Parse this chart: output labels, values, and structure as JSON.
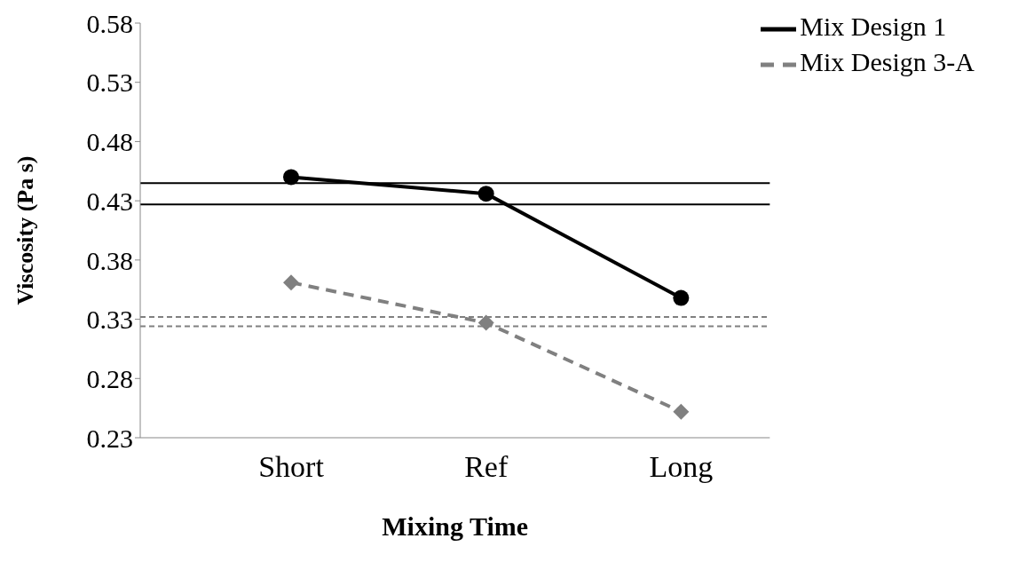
{
  "chart_data": {
    "type": "line",
    "xlabel": "Mixing Time",
    "ylabel": "Viscosity (Pa s)",
    "categories": [
      "Short",
      "Ref",
      "Long"
    ],
    "series": [
      {
        "name": "Mix Design 1",
        "color": "#000000",
        "values": [
          0.45,
          0.436,
          0.348
        ],
        "marker": "circle",
        "line_style": "solid"
      },
      {
        "name": "Mix Design 3-A",
        "color": "#808080",
        "values": [
          0.361,
          0.327,
          0.252
        ],
        "marker": "diamond",
        "line_style": "dashed"
      }
    ],
    "ylim": [
      0.23,
      0.58
    ],
    "yticks": [
      0.23,
      0.28,
      0.33,
      0.38,
      0.43,
      0.48,
      0.53,
      0.58
    ],
    "grid": false,
    "legend": "top right",
    "ref_lines": [
      {
        "axis": "y",
        "value": 0.445,
        "color": "#000000",
        "line_style": "solid"
      },
      {
        "axis": "y",
        "value": 0.427,
        "color": "#000000",
        "line_style": "solid"
      },
      {
        "axis": "y",
        "value": 0.332,
        "color": "#808080",
        "line_style": "dashed"
      },
      {
        "axis": "y",
        "value": 0.324,
        "color": "#808080",
        "line_style": "dashed"
      }
    ]
  }
}
